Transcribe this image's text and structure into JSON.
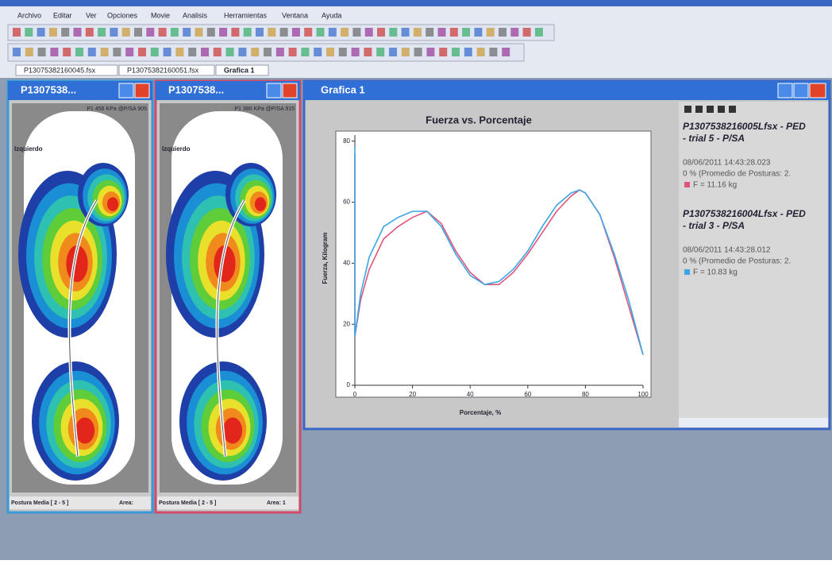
{
  "menu": [
    "Archivo",
    "Editar",
    "Ver",
    "Opciones",
    "Movie",
    "Analisis",
    "Herramientas",
    "Ventana",
    "Ayuda"
  ],
  "tabs": [
    "P13075382160045.fsx",
    "P13075382160051.fsx",
    "Grafica 1"
  ],
  "windows": [
    {
      "title": "P1307538...",
      "info": "P1 456 KPa @P/SA 905",
      "side": "Izquierdo",
      "footer": "Postura Media [ 2 - 5 ]",
      "area": "Area:"
    },
    {
      "title": "P1307538...",
      "info": "P1 390 KPa @P/SA 915",
      "side": "Izquierdo",
      "footer": "Postura Media [ 2 - 5 ]",
      "area": "Area: 1"
    }
  ],
  "graph_window": {
    "title": "Grafica 1"
  },
  "chart_data": {
    "type": "line",
    "title": "Fuerza vs. Porcentaje",
    "x_label": "Porcentaje, %",
    "y_label": "Fuerza, Kilogram",
    "x": [
      0,
      0,
      2,
      5,
      10,
      15,
      20,
      25,
      30,
      35,
      40,
      45,
      50,
      55,
      60,
      65,
      70,
      75,
      78,
      80,
      85,
      90,
      95,
      100
    ],
    "series": [
      {
        "color": "#e0557a",
        "values": [
          76,
          16,
          28,
          38,
          48,
          52,
          55,
          57,
          53,
          44,
          37,
          33,
          33,
          37,
          43,
          50,
          57,
          62,
          64,
          63,
          56,
          42,
          26,
          10
        ]
      },
      {
        "color": "#3aa6e6",
        "values": [
          78,
          16,
          30,
          42,
          52,
          55,
          57,
          57,
          52,
          43,
          36,
          33,
          34,
          38,
          44,
          52,
          59,
          63,
          64,
          63,
          56,
          43,
          28,
          10
        ]
      }
    ],
    "xlim": [
      0,
      100
    ],
    "xticks": [
      0,
      20,
      40,
      60,
      80,
      100
    ],
    "ylim": [
      0,
      82
    ],
    "yticks": [
      0,
      20,
      40,
      60,
      80
    ]
  },
  "legend_panel": {
    "entries": [
      {
        "file": "P1307538216005Lfsx - PED",
        "trial": "- trial 5 - P/SA",
        "date": "08/06/2011 14:43:28.023",
        "note": "0 % (Promedio de Posturas: 2.",
        "value": "F = 11.16 kg",
        "color": "#e0557a"
      },
      {
        "file": "P1307538216004Lfsx - PED",
        "trial": "- trial 3 - P/SA",
        "date": "08/06/2011 14:43:28.012",
        "note": "0 % (Promedio de Posturas: 2.",
        "value": "F = 10.83 kg",
        "color": "#3aa6e6"
      }
    ]
  }
}
